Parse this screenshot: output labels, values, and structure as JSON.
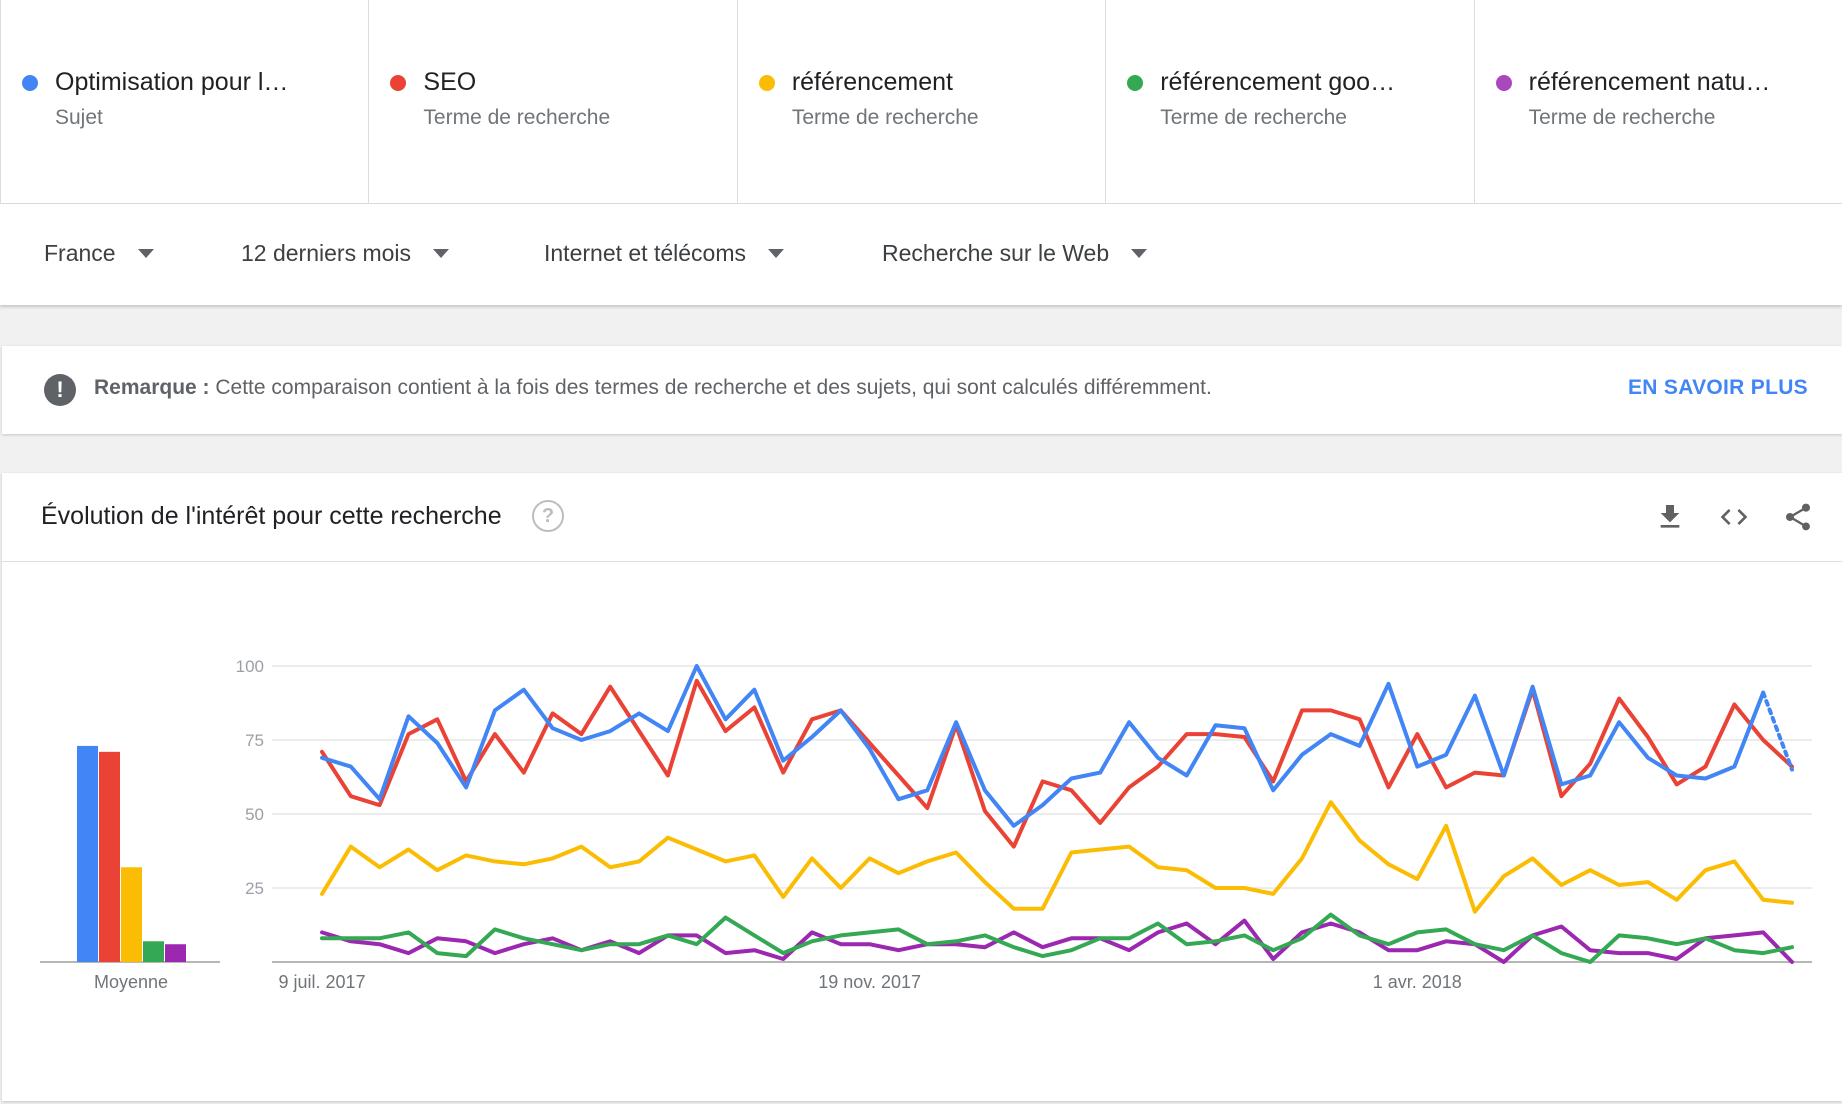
{
  "terms": [
    {
      "label": "Optimisation pour l…",
      "sub": "Sujet",
      "color": "#4285f4"
    },
    {
      "label": "SEO",
      "sub": "Terme de recherche",
      "color": "#ea4335"
    },
    {
      "label": "référencement",
      "sub": "Terme de recherche",
      "color": "#fbbc04"
    },
    {
      "label": "référencement goo…",
      "sub": "Terme de recherche",
      "color": "#34a853"
    },
    {
      "label": "référencement natu…",
      "sub": "Terme de recherche",
      "color": "#ab47bc"
    }
  ],
  "filters": {
    "region": "France",
    "period": "12 derniers mois",
    "category": "Internet et télécoms",
    "search_type": "Recherche sur le Web"
  },
  "note": {
    "icon": "exclamation-icon",
    "label": "Remarque :",
    "text": "Cette comparaison contient à la fois des termes de recherche et des sujets, qui sont calculés différemment.",
    "link": "EN SAVOIR PLUS"
  },
  "card": {
    "title": "Évolution de l'intérêt pour cette recherche",
    "help_icon": "?",
    "icons": [
      "download-icon",
      "embed-icon",
      "share-icon"
    ]
  },
  "chart_data": {
    "type": "line",
    "title": "",
    "ylim": [
      0,
      100
    ],
    "yticks": [
      "100",
      "75",
      "50",
      "25"
    ],
    "x_tick_labels": [
      {
        "index": 0,
        "label": "9 juil. 2017"
      },
      {
        "index": 19,
        "label": "19 nov. 2017"
      },
      {
        "index": 38,
        "label": "1 avr. 2018"
      }
    ],
    "average": {
      "label": "Moyenne",
      "values": [
        73,
        71,
        32,
        7,
        6
      ]
    },
    "series": [
      {
        "name": "Optimisation pour l…",
        "color": "#4285f4",
        "partial_last": true,
        "values": [
          69,
          66,
          55,
          83,
          74,
          59,
          85,
          92,
          79,
          75,
          78,
          84,
          78,
          100,
          82,
          92,
          68,
          76,
          85,
          72,
          55,
          58,
          81,
          58,
          46,
          53,
          62,
          64,
          81,
          69,
          63,
          80,
          79,
          58,
          70,
          77,
          73,
          94,
          66,
          70,
          90,
          63,
          93,
          60,
          63,
          81,
          69,
          63,
          62,
          66,
          91,
          65
        ]
      },
      {
        "name": "SEO",
        "color": "#ea4335",
        "partial_last": false,
        "values": [
          71,
          56,
          53,
          77,
          82,
          61,
          77,
          64,
          84,
          77,
          93,
          78,
          63,
          95,
          78,
          86,
          64,
          82,
          85,
          74,
          63,
          52,
          80,
          51,
          39,
          61,
          58,
          47,
          59,
          66,
          77,
          77,
          76,
          61,
          85,
          85,
          82,
          59,
          77,
          59,
          64,
          63,
          92,
          56,
          67,
          89,
          76,
          60,
          66,
          87,
          75,
          66
        ]
      },
      {
        "name": "référencement",
        "color": "#fbbc04",
        "partial_last": false,
        "values": [
          23,
          39,
          32,
          38,
          31,
          36,
          34,
          33,
          35,
          39,
          32,
          34,
          42,
          38,
          34,
          36,
          22,
          35,
          25,
          35,
          30,
          34,
          37,
          27,
          18,
          18,
          37,
          38,
          39,
          32,
          31,
          25,
          25,
          23,
          35,
          54,
          41,
          33,
          28,
          46,
          17,
          29,
          35,
          26,
          31,
          26,
          27,
          21,
          31,
          34,
          21,
          20
        ]
      },
      {
        "name": "référencement goo…",
        "color": "#34a853",
        "partial_last": false,
        "values": [
          8,
          8,
          8,
          10,
          3,
          2,
          11,
          8,
          6,
          4,
          6,
          6,
          9,
          6,
          15,
          9,
          3,
          7,
          9,
          10,
          11,
          6,
          7,
          9,
          5,
          2,
          4,
          8,
          8,
          13,
          6,
          7,
          9,
          4,
          8,
          16,
          9,
          6,
          10,
          11,
          6,
          4,
          9,
          3,
          0,
          9,
          8,
          6,
          8,
          4,
          3,
          5
        ]
      },
      {
        "name": "référencement natu…",
        "color": "#9c27b0",
        "partial_last": false,
        "values": [
          10,
          7,
          6,
          3,
          8,
          7,
          3,
          6,
          8,
          4,
          7,
          3,
          9,
          9,
          3,
          4,
          1,
          10,
          6,
          6,
          4,
          6,
          6,
          5,
          10,
          5,
          8,
          8,
          4,
          10,
          13,
          6,
          14,
          1,
          10,
          13,
          10,
          4,
          4,
          7,
          6,
          0,
          9,
          12,
          4,
          3,
          3,
          1,
          8,
          9,
          10,
          0
        ]
      }
    ]
  }
}
